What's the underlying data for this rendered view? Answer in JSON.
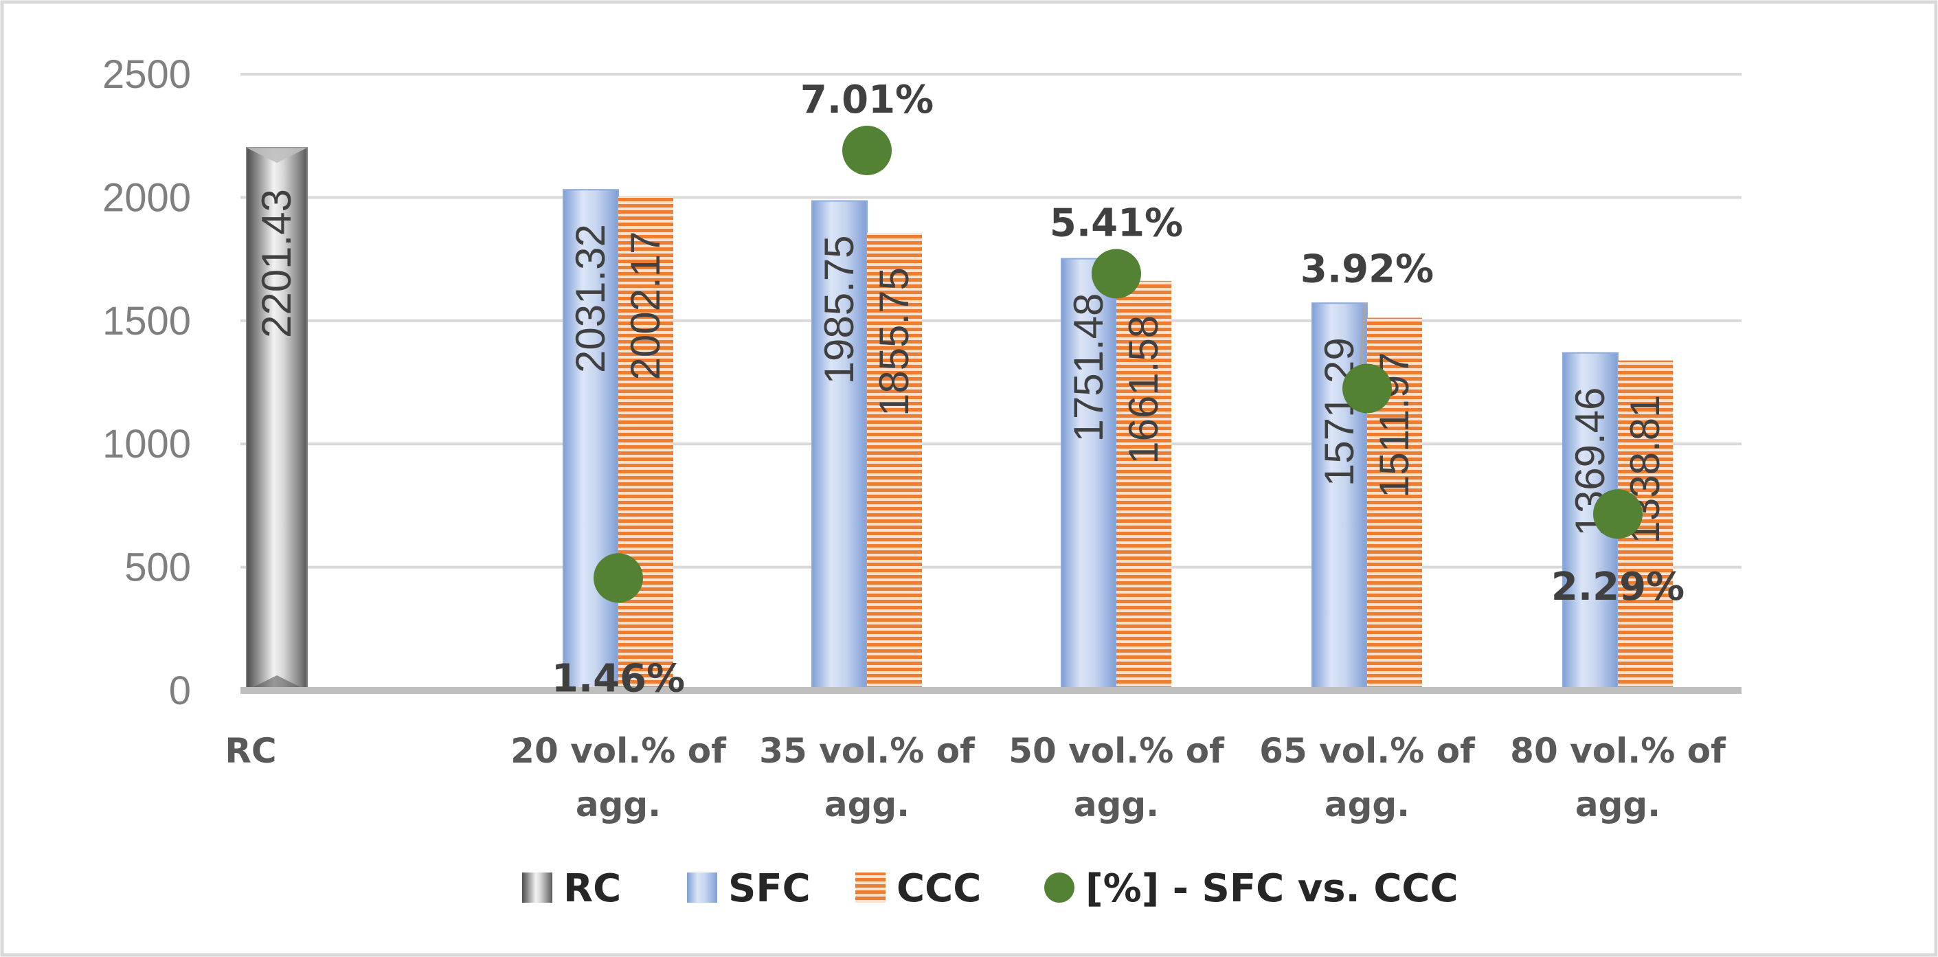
{
  "chart_data": {
    "type": "bar",
    "title": "",
    "xlabel": "",
    "ylabel": "",
    "ylim": [
      0,
      2500
    ],
    "yticks": [
      "0",
      "500",
      "1000",
      "1500",
      "2000",
      "2500"
    ],
    "grid": true,
    "legend_position": "bottom",
    "categories": [
      [
        "RC"
      ],
      [
        "20 vol.% of",
        "agg."
      ],
      [
        "35 vol.% of",
        "agg."
      ],
      [
        "50 vol.% of",
        "agg."
      ],
      [
        "65 vol.% of",
        "agg."
      ],
      [
        "80 vol.% of",
        "agg."
      ]
    ],
    "series": [
      {
        "name": "RC",
        "kind": "bar",
        "color": "#a6a6a6",
        "values": [
          2201.43,
          null,
          null,
          null,
          null,
          null
        ],
        "labels": [
          "2201.43",
          null,
          null,
          null,
          null,
          null
        ]
      },
      {
        "name": "SFC",
        "kind": "bar",
        "color": "#8faadc",
        "values": [
          null,
          2031.32,
          1985.75,
          1751.48,
          1571.29,
          1369.46
        ],
        "labels": [
          null,
          "2031.32",
          "1985.75",
          "1751.48",
          "1571.29",
          "1369.46"
        ]
      },
      {
        "name": "CCC",
        "kind": "bar",
        "color": "#ed7d31",
        "values": [
          null,
          2002.17,
          1855.75,
          1661.58,
          1511.97,
          1338.81
        ],
        "labels": [
          null,
          "2002.17",
          "1855.75",
          "1661.58",
          "1511.97",
          "1338.81"
        ]
      },
      {
        "name": "[%] - SFC vs. CCC",
        "kind": "scatter",
        "color": "#548235",
        "values": [
          null,
          1.46,
          7.01,
          5.41,
          3.92,
          2.29
        ],
        "labels": [
          null,
          "1.46%",
          "7.01%",
          "5.41%",
          "3.92%",
          "2.29%"
        ],
        "secondary_axis_range": [
          0,
          8
        ]
      }
    ]
  }
}
